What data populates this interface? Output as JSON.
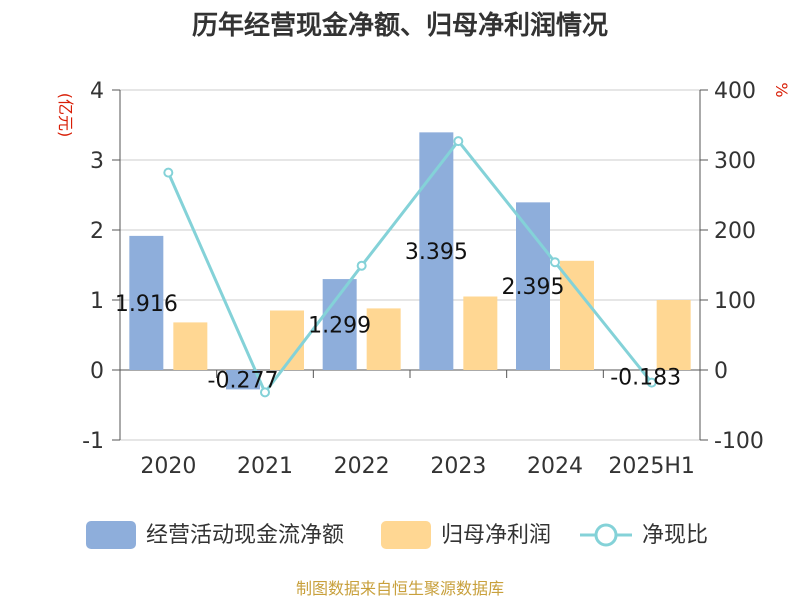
{
  "chart_data": {
    "type": "bar",
    "title": "历年经营现金净额、归母净利润情况",
    "categories": [
      "2020",
      "2021",
      "2022",
      "2023",
      "2024",
      "2025H1"
    ],
    "left_axis_unit": "(亿元)",
    "right_axis_unit": "%",
    "ylim_left": [
      -1,
      4
    ],
    "yticks_left": [
      "4",
      "3",
      "2",
      "1",
      "0",
      "-1"
    ],
    "ylim_right": [
      -100,
      400
    ],
    "yticks_right": [
      "400",
      "300",
      "200",
      "100",
      "0",
      "-100"
    ],
    "grid": true,
    "legend_position": "bottom",
    "series": [
      {
        "name": "经营活动现金流净额",
        "kind": "bar",
        "axis": "left",
        "color": "#8eaedb",
        "values": [
          1.916,
          -0.277,
          1.299,
          3.395,
          2.395,
          null
        ],
        "labels": [
          "1.916",
          "-0.277",
          "1.299",
          "3.395",
          "2.395",
          ""
        ]
      },
      {
        "name": "归母净利润",
        "kind": "bar",
        "axis": "left",
        "color": "#ffd793",
        "values": [
          0.68,
          0.85,
          0.88,
          1.05,
          1.56,
          1.0
        ]
      },
      {
        "name": "净现比",
        "kind": "line",
        "axis": "right",
        "color": "#84d2d8",
        "values": [
          282,
          -32,
          149,
          327,
          154,
          -18
        ],
        "labels": [
          "",
          "",
          "",
          "",
          "",
          "-0.183"
        ]
      }
    ]
  },
  "footer": {
    "source": "制图数据来自恒生聚源数据库"
  }
}
